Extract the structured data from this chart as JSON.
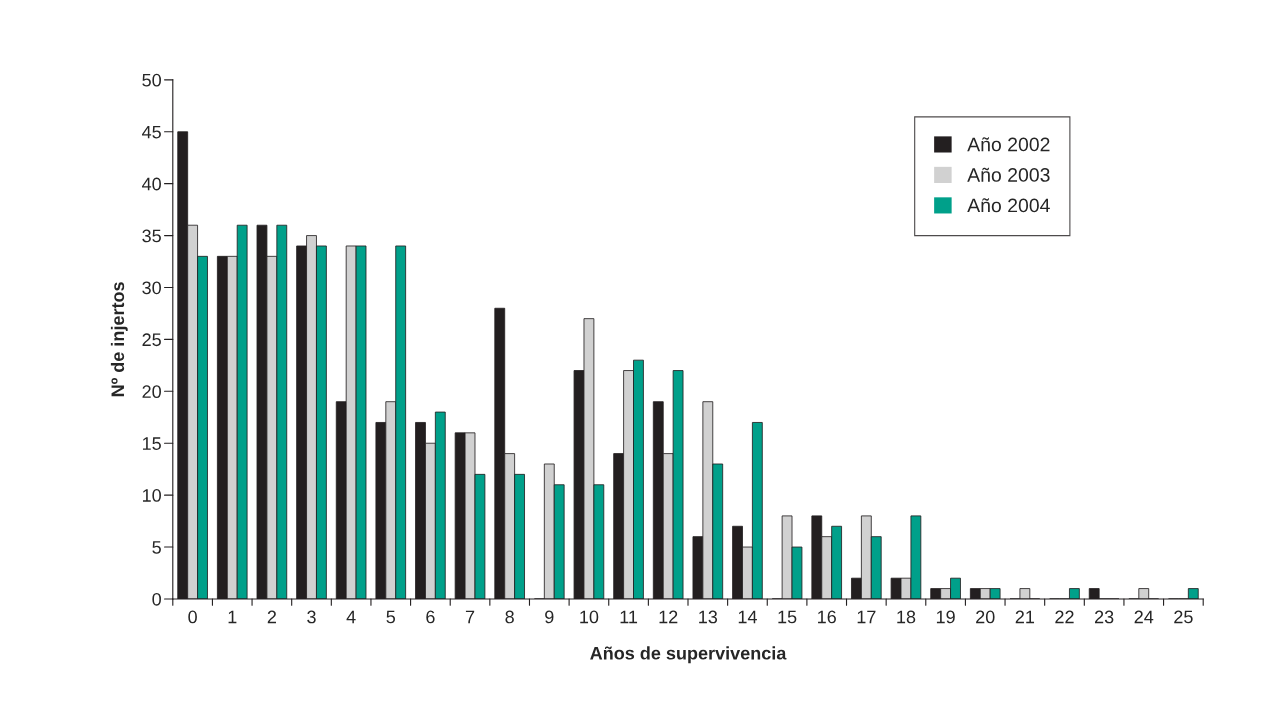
{
  "chart_data": {
    "type": "bar",
    "xlabel": "Años de supervivencia",
    "ylabel": "Nº de injertos",
    "categories": [
      "0",
      "1",
      "2",
      "3",
      "4",
      "5",
      "6",
      "7",
      "8",
      "9",
      "10",
      "11",
      "12",
      "13",
      "14",
      "15",
      "16",
      "17",
      "18",
      "19",
      "20",
      "21",
      "22",
      "23",
      "24",
      "25"
    ],
    "series": [
      {
        "name": "Año 2002",
        "color": "#231f20",
        "values": [
          45,
          33,
          36,
          34,
          19,
          17,
          17,
          16,
          28,
          0,
          22,
          14,
          19,
          6,
          7,
          0,
          8,
          2,
          2,
          1,
          1,
          0,
          0,
          1,
          0,
          0
        ]
      },
      {
        "name": "Año 2003",
        "color": "#d1d1d1",
        "values": [
          36,
          33,
          33,
          35,
          34,
          19,
          15,
          16,
          14,
          13,
          27,
          22,
          14,
          19,
          5,
          8,
          6,
          8,
          2,
          1,
          1,
          1,
          0,
          0,
          1,
          0
        ]
      },
      {
        "name": "Año 2004",
        "color": "#00a08a",
        "values": [
          33,
          36,
          36,
          34,
          34,
          34,
          18,
          12,
          12,
          11,
          11,
          23,
          22,
          13,
          17,
          5,
          7,
          6,
          8,
          2,
          1,
          0,
          1,
          0,
          0,
          1
        ]
      }
    ],
    "ylim": [
      0,
      50
    ],
    "yticks": [
      0,
      5,
      10,
      15,
      20,
      25,
      30,
      35,
      40,
      45,
      50
    ],
    "grid": false,
    "legend": "top right"
  }
}
